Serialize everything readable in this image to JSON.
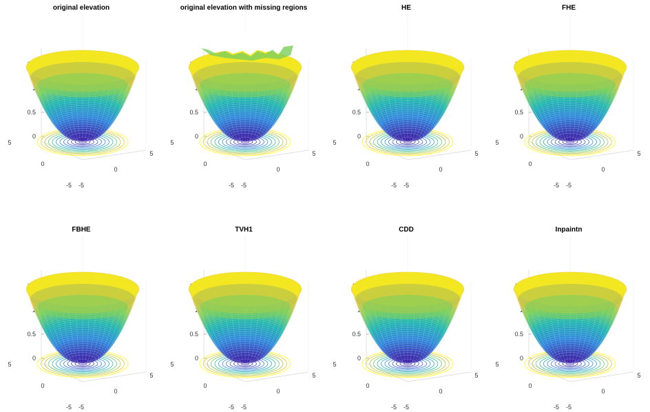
{
  "figure": {
    "panels": [
      {
        "title": "original elevation",
        "missing": false
      },
      {
        "title": "original elevation with missing regions",
        "missing": true
      },
      {
        "title": "HE",
        "missing": false
      },
      {
        "title": "FHE",
        "missing": false
      },
      {
        "title": "FBHE",
        "missing": false
      },
      {
        "title": "TVH1",
        "missing": false
      },
      {
        "title": "CDD",
        "missing": false
      },
      {
        "title": "Inpaintn",
        "missing": false
      }
    ]
  },
  "chart_data": {
    "type": "surface3d",
    "surface": "z = (x^2 + y^2) / 16 (paraboloid with contour projection on floor)",
    "zticks": [
      "0",
      "0.5",
      "1",
      "1.5"
    ],
    "xticks": [
      "-5",
      "0",
      "5"
    ],
    "yticks": [
      "5",
      "0",
      "-5"
    ],
    "zlim": [
      0,
      1.8
    ],
    "xlim": [
      -5,
      5
    ],
    "ylim": [
      -5,
      5
    ],
    "colormap": [
      "#3e26a8",
      "#2e86dc",
      "#1fb5b0",
      "#7ccf5c",
      "#e8c13a",
      "#f9fb15"
    ],
    "grid": true
  }
}
